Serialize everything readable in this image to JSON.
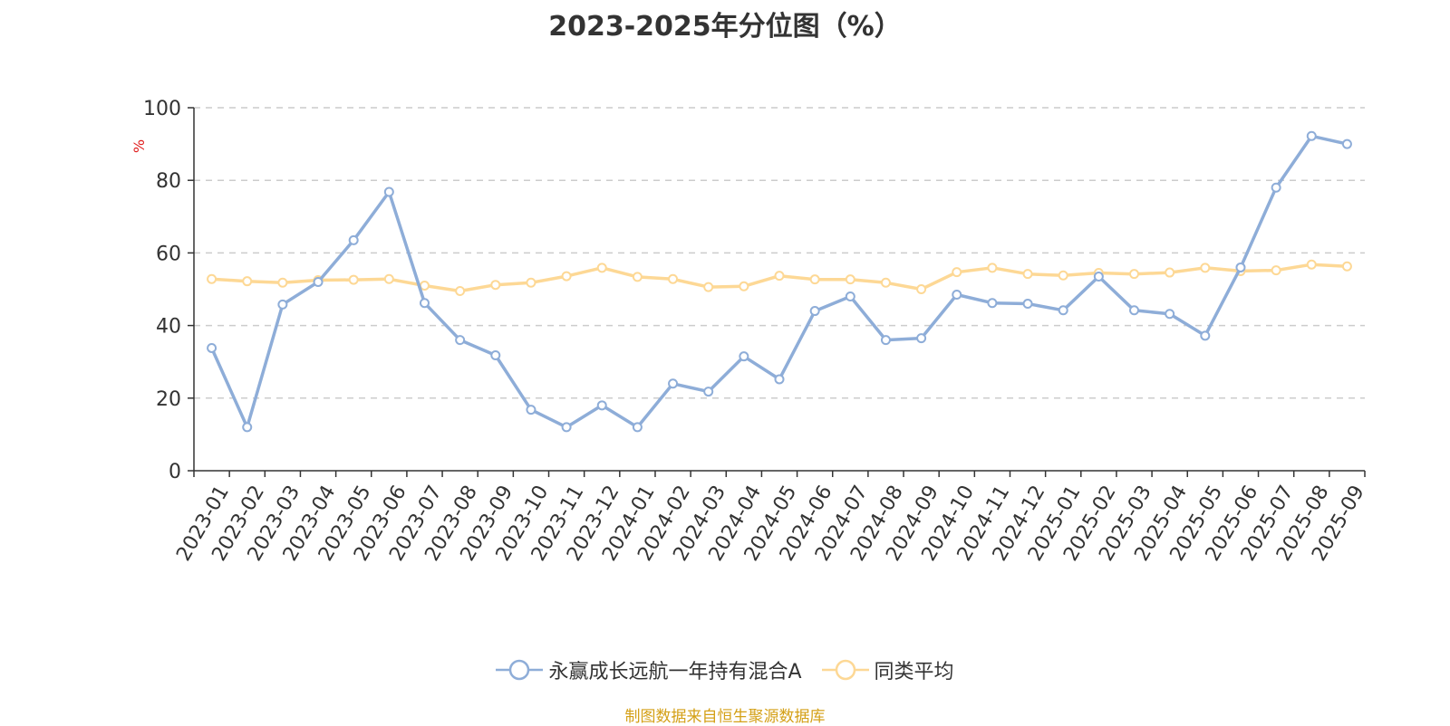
{
  "chart_data": {
    "type": "line",
    "title": "2023-2025年分位图（%）",
    "ylabel": "%",
    "ylim": [
      0,
      100
    ],
    "yticks": [
      0,
      20,
      40,
      60,
      80,
      100
    ],
    "grid": true,
    "legend_position": "bottom",
    "categories": [
      "2023-01",
      "2023-02",
      "2023-03",
      "2023-04",
      "2023-05",
      "2023-06",
      "2023-07",
      "2023-08",
      "2023-09",
      "2023-10",
      "2023-11",
      "2023-12",
      "2024-01",
      "2024-02",
      "2024-03",
      "2024-04",
      "2024-05",
      "2024-06",
      "2024-07",
      "2024-08",
      "2024-09",
      "2024-10",
      "2024-11",
      "2024-12",
      "2025-01",
      "2025-02",
      "2025-03",
      "2025-04",
      "2025-05",
      "2025-06",
      "2025-07",
      "2025-08",
      "2025-09"
    ],
    "series": [
      {
        "name": "永赢成长远航一年持有混合A",
        "color": "#8eadd8",
        "values": [
          33.8,
          12.0,
          45.8,
          52.0,
          63.5,
          76.8,
          46.2,
          36.0,
          31.8,
          16.8,
          12.0,
          18.0,
          12.0,
          24.0,
          21.8,
          31.5,
          25.2,
          44.0,
          48.0,
          36.0,
          36.5,
          48.5,
          46.2,
          46.0,
          44.2,
          53.5,
          44.2,
          43.2,
          37.2,
          56.0,
          78.0,
          92.2,
          90.0
        ]
      },
      {
        "name": "同类平均",
        "color": "#fdd895",
        "values": [
          52.8,
          52.2,
          51.8,
          52.5,
          52.6,
          52.8,
          51.0,
          49.5,
          51.2,
          51.8,
          53.6,
          55.9,
          53.4,
          52.8,
          50.6,
          50.8,
          53.7,
          52.7,
          52.7,
          51.8,
          50.0,
          54.7,
          55.9,
          54.2,
          53.8,
          54.5,
          54.2,
          54.6,
          55.9,
          55.0,
          55.2,
          56.8,
          56.3
        ]
      }
    ]
  },
  "source_text": "制图数据来自恒生聚源数据库"
}
